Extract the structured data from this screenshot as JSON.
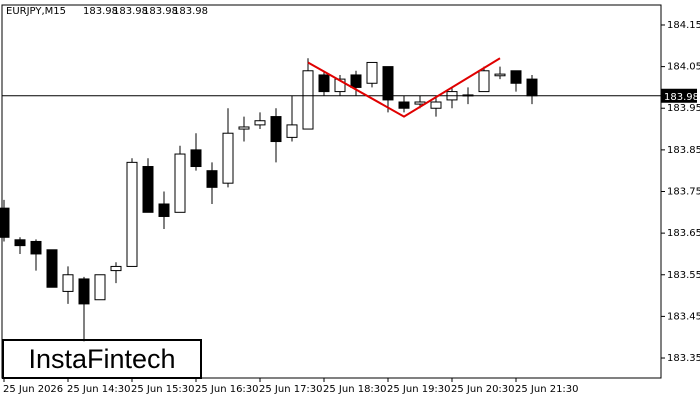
{
  "chart_data": {
    "type": "candlestick",
    "symbol": "EURJPY,M15",
    "header_values": [
      183.98,
      183.98,
      183.98,
      183.98
    ],
    "watermark": "InstaFintech",
    "categories": [
      "25 Jun 2026",
      null,
      null,
      null,
      "25 Jun 14:30",
      null,
      null,
      null,
      "25 Jun 15:30",
      null,
      null,
      null,
      "25 Jun 16:30",
      null,
      null,
      null,
      "25 Jun 17:30",
      null,
      null,
      null,
      "25 Jun 18:30",
      null,
      null,
      null,
      "25 Jun 19:30",
      null,
      null,
      null,
      "25 Jun 20:30",
      null,
      null,
      null,
      "25 Jun 21:30",
      null
    ],
    "open": [
      183.71,
      183.634,
      183.63,
      183.61,
      183.51,
      183.54,
      183.49,
      183.56,
      183.57,
      183.81,
      183.72,
      183.7,
      183.85,
      183.8,
      183.77,
      183.9,
      183.91,
      183.93,
      183.88,
      183.9,
      184.03,
      183.99,
      184.03,
      184.01,
      184.05,
      183.965,
      183.96,
      183.95,
      183.97,
      183.98,
      183.99,
      184.028,
      184.04,
      184.02
    ],
    "high": [
      183.73,
      183.64,
      183.635,
      183.61,
      183.57,
      183.545,
      183.55,
      183.58,
      183.83,
      183.83,
      183.75,
      183.86,
      183.89,
      183.82,
      183.95,
      183.93,
      183.94,
      183.95,
      183.98,
      184.07,
      184.04,
      184.03,
      184.04,
      184.06,
      184.05,
      183.98,
      183.98,
      183.98,
      184.0,
      184.0,
      184.05,
      184.05,
      184.04,
      184.03
    ],
    "low": [
      183.63,
      183.6,
      183.56,
      183.52,
      183.48,
      183.39,
      183.49,
      183.53,
      183.57,
      183.7,
      183.66,
      183.7,
      183.8,
      183.72,
      183.76,
      183.87,
      183.9,
      183.82,
      183.87,
      183.9,
      183.98,
      183.98,
      183.98,
      184.0,
      183.94,
      183.94,
      183.95,
      183.93,
      183.95,
      183.96,
      183.99,
      184.02,
      183.99,
      183.96
    ],
    "close": [
      183.64,
      183.62,
      183.6,
      183.52,
      183.55,
      183.48,
      183.55,
      183.57,
      183.82,
      183.7,
      183.69,
      183.84,
      183.81,
      183.76,
      183.89,
      183.905,
      183.92,
      183.87,
      183.91,
      184.04,
      183.99,
      184.02,
      184.0,
      184.06,
      183.97,
      183.95,
      183.965,
      183.965,
      183.99,
      183.982,
      184.04,
      184.032,
      184.01,
      183.98
    ],
    "up_color": "#ffffff",
    "down_color": "#000000",
    "last_price": 183.98,
    "pattern": {
      "color": "#e00000",
      "indices": [
        19,
        25,
        31
      ],
      "values": [
        184.06,
        183.93,
        184.07
      ]
    },
    "ylim": [
      183.302,
      184.198
    ],
    "yticks": [
      183.35,
      183.45,
      183.55,
      183.65,
      183.75,
      183.85,
      183.95,
      184.05,
      184.15
    ]
  }
}
